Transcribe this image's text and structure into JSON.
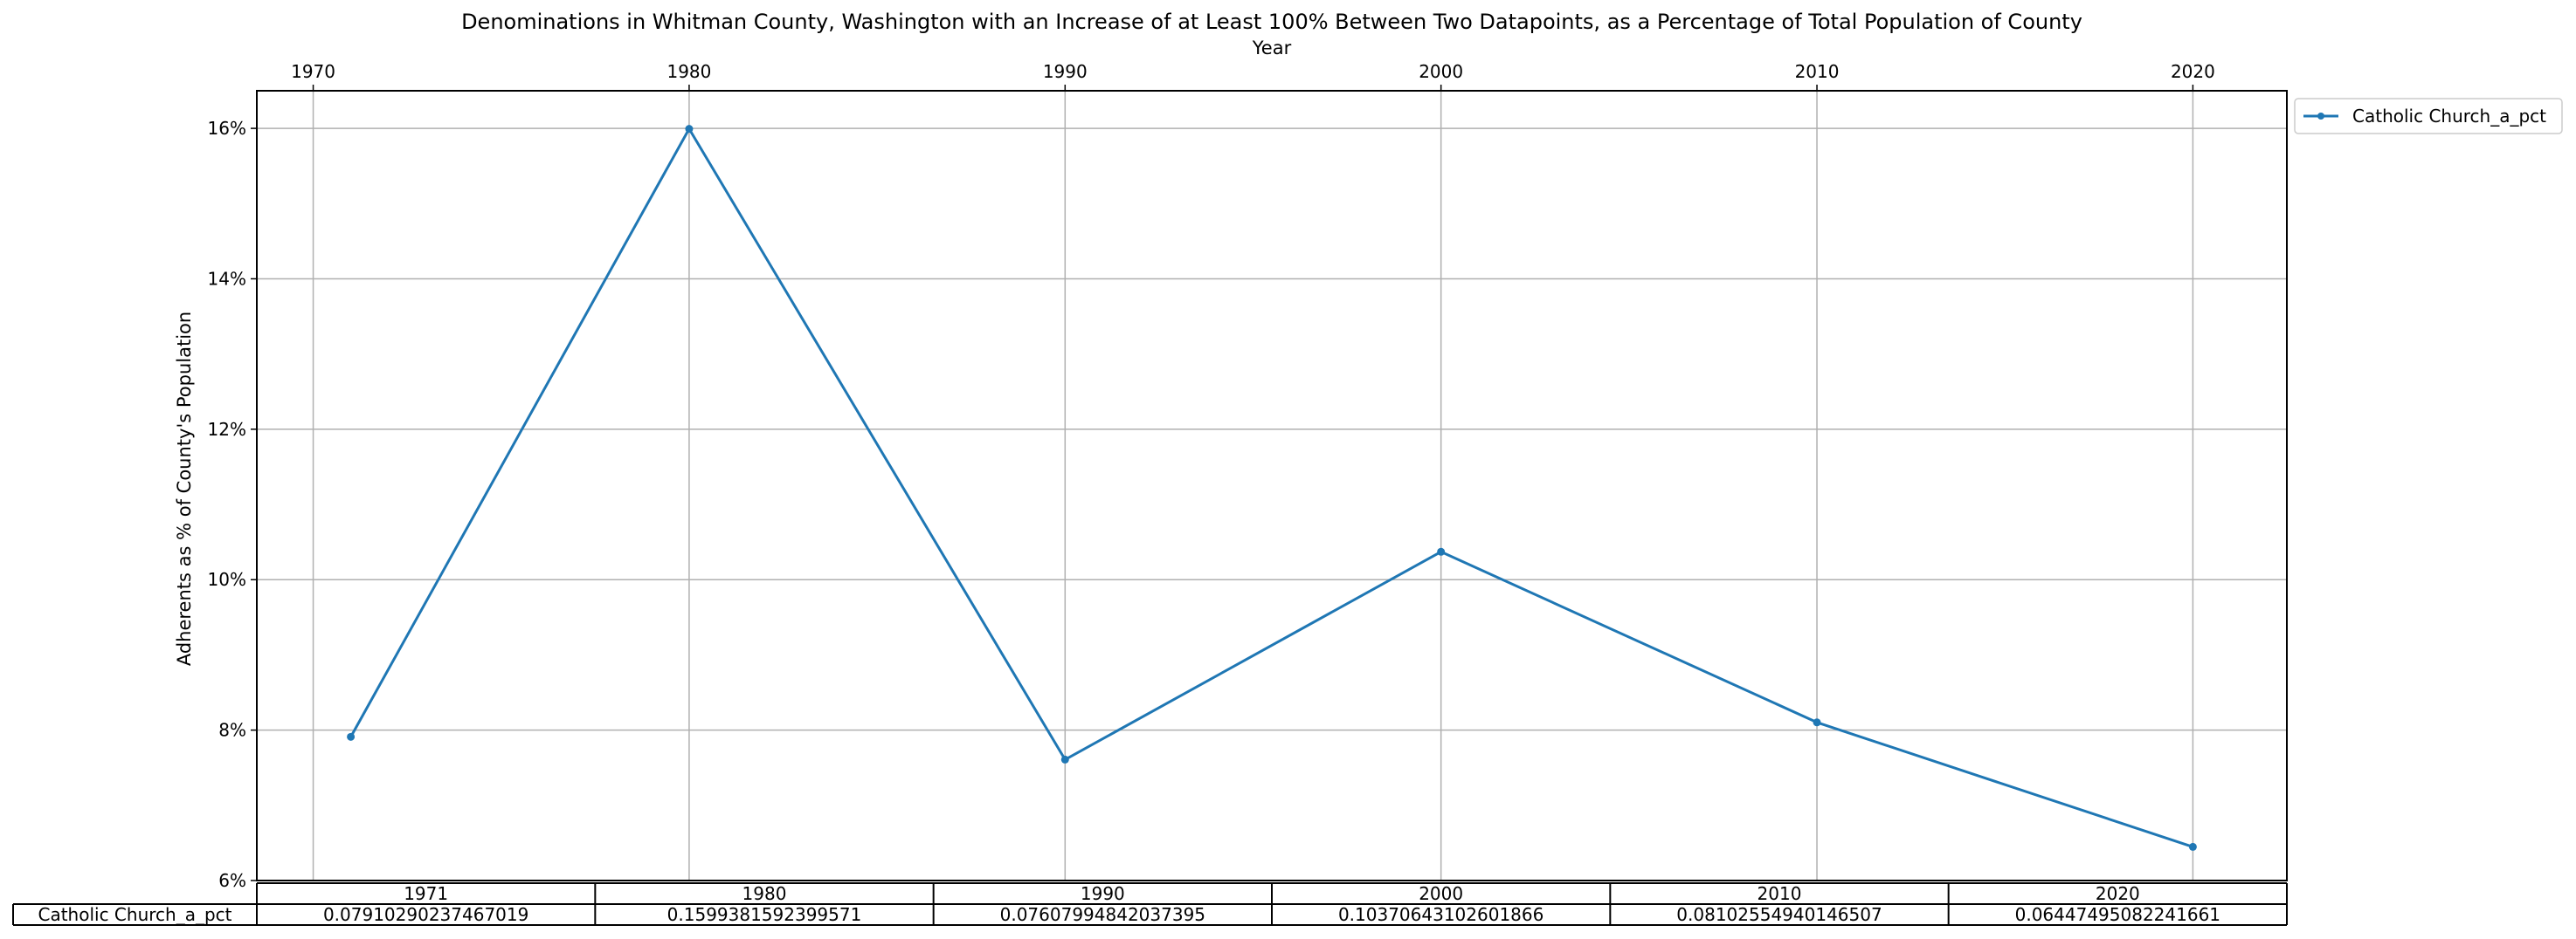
{
  "chart_data": {
    "type": "line",
    "title": "Denominations in Whitman County, Washington with an Increase of at Least 100% Between Two Datapoints, as a Percentage of Total Population of County",
    "xlabel": "Year",
    "ylabel": "Adherents as % of County's Population",
    "x_ticks": [
      1970,
      1980,
      1990,
      2000,
      2010,
      2020
    ],
    "y_ticks": [
      0.06,
      0.08,
      0.1,
      0.12,
      0.14,
      0.16
    ],
    "y_tick_labels": [
      "6%",
      "8%",
      "10%",
      "12%",
      "14%",
      "16%"
    ],
    "xlim": [
      1968.5,
      2022.5
    ],
    "ylim": [
      0.06,
      0.165
    ],
    "grid": true,
    "legend_position": "outside-top-right",
    "x": [
      1971,
      1980,
      1990,
      2000,
      2010,
      2020
    ],
    "series": [
      {
        "name": "Catholic Church_a_pct",
        "color": "#1f77b4",
        "values": [
          0.07910290237467019,
          0.1599381592399571,
          0.07607994842037395,
          0.10370643102601866,
          0.08102554940146507,
          0.06447495082241661
        ]
      }
    ],
    "table": {
      "columns": [
        "1971",
        "1980",
        "1990",
        "2000",
        "2010",
        "2020"
      ],
      "row_label": "Catholic Church_a_pct",
      "cells": [
        "0.07910290237467019",
        "0.1599381592399571",
        "0.07607994842037395",
        "0.10370643102601866",
        "0.08102554940146507",
        "0.06447495082241661"
      ]
    }
  }
}
